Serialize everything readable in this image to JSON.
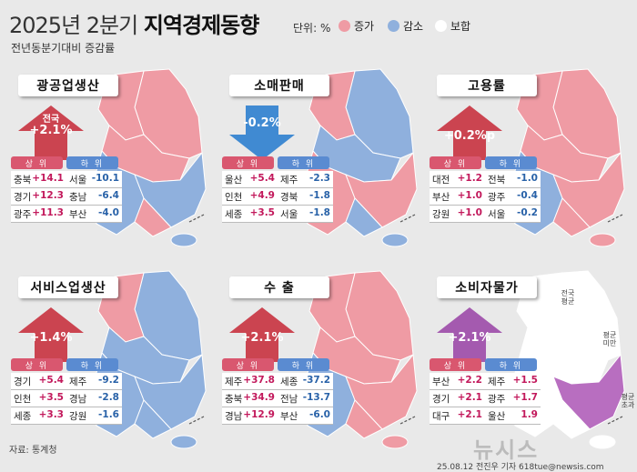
{
  "header": {
    "title_prefix": "2025년 2분기",
    "title_main": "지역경제동향",
    "unit": "단위: %",
    "subtitle": "전년동분기대비 증감률"
  },
  "legend": [
    {
      "label": "증가",
      "color": "#ef9ba4"
    },
    {
      "label": "감소",
      "color": "#8fb0dd"
    },
    {
      "label": "보합",
      "color": "#ffffff"
    }
  ],
  "colors": {
    "increase": "#ef9ba4",
    "decrease": "#8fb0dd",
    "neutral": "#ffffff",
    "cpi_high": "#b86ec0",
    "arrow_up": "#c8323f",
    "arrow_down": "#2d7fcf",
    "arrow_purple": "#9c4aa8"
  },
  "headers": {
    "top": "상 위",
    "bottom": "하 위"
  },
  "panels": [
    {
      "id": "mining",
      "label": "광공업생산",
      "arrow": {
        "dir": "up",
        "color": "#c8323f",
        "prefix": "전국",
        "value": "+2.1%"
      },
      "rows": [
        {
          "l": "충북",
          "lv": "+14.1",
          "r": "서울",
          "rv": "-10.1"
        },
        {
          "l": "경기",
          "lv": "+12.3",
          "r": "충남",
          "rv": "-6.4"
        },
        {
          "l": "광주",
          "lv": "+11.3",
          "r": "부산",
          "rv": "-4.0"
        }
      ]
    },
    {
      "id": "retail",
      "label": "소매판매",
      "arrow": {
        "dir": "down",
        "color": "#2d7fcf",
        "prefix": "",
        "value": "-0.2%"
      },
      "rows": [
        {
          "l": "울산",
          "lv": "+5.4",
          "r": "제주",
          "rv": "-2.3"
        },
        {
          "l": "인천",
          "lv": "+4.9",
          "r": "경북",
          "rv": "-1.8"
        },
        {
          "l": "세종",
          "lv": "+3.5",
          "r": "서울",
          "rv": "-1.8"
        }
      ]
    },
    {
      "id": "employment",
      "label": "고용률",
      "arrow": {
        "dir": "up",
        "color": "#c8323f",
        "prefix": "",
        "value": "+0.2%p"
      },
      "rows": [
        {
          "l": "대전",
          "lv": "+1.2",
          "r": "전북",
          "rv": "-1.0"
        },
        {
          "l": "부산",
          "lv": "+1.0",
          "r": "광주",
          "rv": "-0.4"
        },
        {
          "l": "강원",
          "lv": "+1.0",
          "r": "서울",
          "rv": "-0.2"
        }
      ]
    },
    {
      "id": "services",
      "label": "서비스업생산",
      "arrow": {
        "dir": "up",
        "color": "#c8323f",
        "prefix": "",
        "value": "+1.4%"
      },
      "rows": [
        {
          "l": "경기",
          "lv": "+5.4",
          "r": "제주",
          "rv": "-9.2"
        },
        {
          "l": "인천",
          "lv": "+3.5",
          "r": "경남",
          "rv": "-2.8"
        },
        {
          "l": "세종",
          "lv": "+3.3",
          "r": "강원",
          "rv": "-1.6"
        }
      ]
    },
    {
      "id": "exports",
      "label": "수 출",
      "arrow": {
        "dir": "up",
        "color": "#c8323f",
        "prefix": "",
        "value": "+2.1%"
      },
      "rows": [
        {
          "l": "제주",
          "lv": "+37.8",
          "r": "세종",
          "rv": "-37.2"
        },
        {
          "l": "충북",
          "lv": "+34.9",
          "r": "전남",
          "rv": "-13.7"
        },
        {
          "l": "경남",
          "lv": "+12.9",
          "r": "부산",
          "rv": "-6.0"
        }
      ]
    },
    {
      "id": "cpi",
      "label": "소비자물가",
      "arrow": {
        "dir": "up",
        "color": "#9c4aa8",
        "prefix": "",
        "value": "+2.1%"
      },
      "rows": [
        {
          "l": "부산",
          "lv": "+2.2",
          "r": "제주",
          "rv": "+1.5"
        },
        {
          "l": "경기",
          "lv": "+2.1",
          "r": "광주",
          "rv": "+1.7"
        },
        {
          "l": "대구",
          "lv": "+2.1",
          "r": "울산",
          "rv": "1.9"
        }
      ]
    }
  ],
  "cpi_notes": {
    "national": "전국 평균",
    "below": "평균 미만",
    "above": "평균 초과"
  },
  "footer": {
    "source": "자료: 통계청",
    "credit": "25.08.12 전진우 기자 618tue@newsis.com",
    "logo": "뉴시스"
  }
}
